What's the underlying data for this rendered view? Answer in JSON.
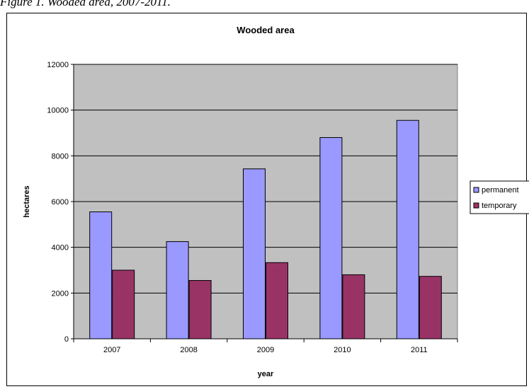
{
  "caption": "Figure 1. Wooded area, 2007-2011.",
  "chart_data": {
    "type": "bar",
    "title": "Wooded area",
    "xlabel": "year",
    "ylabel": "hectares",
    "categories": [
      "2007",
      "2008",
      "2009",
      "2010",
      "2011"
    ],
    "series": [
      {
        "name": "permanent",
        "color": "#9999ff",
        "values": [
          5550,
          4250,
          7430,
          8800,
          9550
        ]
      },
      {
        "name": "temporary",
        "color": "#993366",
        "values": [
          3000,
          2550,
          3330,
          2800,
          2730
        ]
      }
    ],
    "ylim": [
      0,
      12000
    ],
    "yticks": [
      "0",
      "2000",
      "4000",
      "6000",
      "8000",
      "10000",
      "12000"
    ],
    "grid": true,
    "plot_background": "#c0c0c0",
    "legend": "right"
  }
}
